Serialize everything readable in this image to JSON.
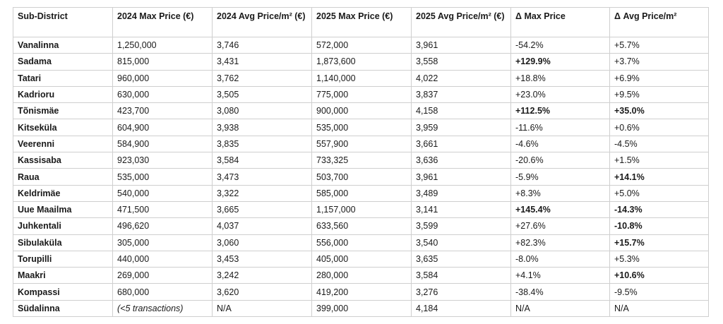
{
  "headers": [
    "Sub-District",
    "2024 Max Price (€)",
    "2024 Avg Price/m² (€)",
    "2025 Max Price (€)",
    "2025 Avg Price/m² (€)",
    "Δ Max Price",
    "Δ Avg Price/m²"
  ],
  "rows": [
    {
      "district": "Vanalinna",
      "max24": "1,250,000",
      "avg24": "3,746",
      "max25": "572,000",
      "avg25": "3,961",
      "dmax": "-54.2%",
      "davg": "+5.7%",
      "dmax_bold": false,
      "davg_bold": false,
      "max24_italic": false
    },
    {
      "district": "Sadama",
      "max24": "815,000",
      "avg24": "3,431",
      "max25": "1,873,600",
      "avg25": "3,558",
      "dmax": "+129.9%",
      "davg": "+3.7%",
      "dmax_bold": true,
      "davg_bold": false,
      "max24_italic": false
    },
    {
      "district": "Tatari",
      "max24": "960,000",
      "avg24": "3,762",
      "max25": "1,140,000",
      "avg25": "4,022",
      "dmax": "+18.8%",
      "davg": "+6.9%",
      "dmax_bold": false,
      "davg_bold": false,
      "max24_italic": false
    },
    {
      "district": "Kadrioru",
      "max24": "630,000",
      "avg24": "3,505",
      "max25": "775,000",
      "avg25": "3,837",
      "dmax": "+23.0%",
      "davg": "+9.5%",
      "dmax_bold": false,
      "davg_bold": false,
      "max24_italic": false
    },
    {
      "district": "Tõnismäe",
      "max24": "423,700",
      "avg24": "3,080",
      "max25": "900,000",
      "avg25": "4,158",
      "dmax": "+112.5%",
      "davg": "+35.0%",
      "dmax_bold": true,
      "davg_bold": true,
      "max24_italic": false
    },
    {
      "district": "Kitseküla",
      "max24": "604,900",
      "avg24": "3,938",
      "max25": "535,000",
      "avg25": "3,959",
      "dmax": "-11.6%",
      "davg": "+0.6%",
      "dmax_bold": false,
      "davg_bold": false,
      "max24_italic": false
    },
    {
      "district": "Veerenni",
      "max24": "584,900",
      "avg24": "3,835",
      "max25": "557,900",
      "avg25": "3,661",
      "dmax": "-4.6%",
      "davg": "-4.5%",
      "dmax_bold": false,
      "davg_bold": false,
      "max24_italic": false
    },
    {
      "district": "Kassisaba",
      "max24": "923,030",
      "avg24": "3,584",
      "max25": "733,325",
      "avg25": "3,636",
      "dmax": "-20.6%",
      "davg": "+1.5%",
      "dmax_bold": false,
      "davg_bold": false,
      "max24_italic": false
    },
    {
      "district": "Raua",
      "max24": "535,000",
      "avg24": "3,473",
      "max25": "503,700",
      "avg25": "3,961",
      "dmax": "-5.9%",
      "davg": "+14.1%",
      "dmax_bold": false,
      "davg_bold": true,
      "max24_italic": false
    },
    {
      "district": "Keldrimäe",
      "max24": "540,000",
      "avg24": "3,322",
      "max25": "585,000",
      "avg25": "3,489",
      "dmax": "+8.3%",
      "davg": "+5.0%",
      "dmax_bold": false,
      "davg_bold": false,
      "max24_italic": false
    },
    {
      "district": "Uue Maailma",
      "max24": "471,500",
      "avg24": "3,665",
      "max25": "1,157,000",
      "avg25": "3,141",
      "dmax": "+145.4%",
      "davg": "-14.3%",
      "dmax_bold": true,
      "davg_bold": true,
      "max24_italic": false
    },
    {
      "district": "Juhkentali",
      "max24": "496,620",
      "avg24": "4,037",
      "max25": "633,560",
      "avg25": "3,599",
      "dmax": "+27.6%",
      "davg": "-10.8%",
      "dmax_bold": false,
      "davg_bold": true,
      "max24_italic": false
    },
    {
      "district": "Sibulaküla",
      "max24": "305,000",
      "avg24": "3,060",
      "max25": "556,000",
      "avg25": "3,540",
      "dmax": "+82.3%",
      "davg": "+15.7%",
      "dmax_bold": false,
      "davg_bold": true,
      "max24_italic": false
    },
    {
      "district": "Torupilli",
      "max24": "440,000",
      "avg24": "3,453",
      "max25": "405,000",
      "avg25": "3,635",
      "dmax": "-8.0%",
      "davg": "+5.3%",
      "dmax_bold": false,
      "davg_bold": false,
      "max24_italic": false
    },
    {
      "district": "Maakri",
      "max24": "269,000",
      "avg24": "3,242",
      "max25": "280,000",
      "avg25": "3,584",
      "dmax": "+4.1%",
      "davg": "+10.6%",
      "dmax_bold": false,
      "davg_bold": true,
      "max24_italic": false
    },
    {
      "district": "Kompassi",
      "max24": "680,000",
      "avg24": "3,620",
      "max25": "419,200",
      "avg25": "3,276",
      "dmax": "-38.4%",
      "davg": "-9.5%",
      "dmax_bold": false,
      "davg_bold": false,
      "max24_italic": false
    },
    {
      "district": "Südalinna",
      "max24": "(<5 transactions)",
      "avg24": "N/A",
      "max25": "399,000",
      "avg25": "4,184",
      "dmax": "N/A",
      "davg": "N/A",
      "dmax_bold": false,
      "davg_bold": false,
      "max24_italic": true
    }
  ]
}
